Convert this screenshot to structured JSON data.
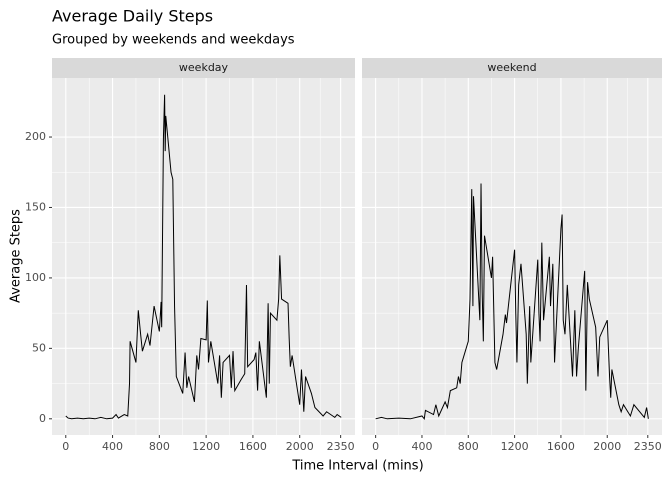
{
  "chart_data": {
    "type": "line",
    "title": "Average Daily Steps",
    "subtitle": "Grouped by weekends and weekdays",
    "x_label": "Time Interval (mins)",
    "y_label": "Average Steps",
    "color": "#000000",
    "grid": true,
    "xlim": [
      -117.75,
      2472.75
    ],
    "ylim": [
      -11.5,
      241.9
    ],
    "xticks": [
      0,
      400,
      800,
      1200,
      1600,
      2000,
      2350
    ],
    "yticks": [
      0,
      50,
      100,
      150,
      200
    ],
    "facets": [
      {
        "name": "weekday",
        "x": [
          0,
          20,
          50,
          100,
          150,
          200,
          250,
          300,
          350,
          400,
          430,
          450,
          500,
          530,
          545,
          550,
          600,
          620,
          640,
          655,
          700,
          720,
          740,
          755,
          800,
          815,
          820,
          835,
          845,
          850,
          855,
          900,
          915,
          930,
          945,
          1000,
          1020,
          1035,
          1050,
          1100,
          1120,
          1135,
          1155,
          1200,
          1210,
          1220,
          1240,
          1300,
          1315,
          1330,
          1345,
          1400,
          1415,
          1430,
          1445,
          1500,
          1530,
          1545,
          1555,
          1610,
          1625,
          1640,
          1655,
          1715,
          1730,
          1740,
          1750,
          1805,
          1820,
          1830,
          1845,
          1900,
          1910,
          1920,
          1935,
          2000,
          2015,
          2025,
          2035,
          2050,
          2100,
          2130,
          2200,
          2230,
          2300,
          2320,
          2355
        ],
        "values": [
          2,
          0.5,
          0,
          0.5,
          0,
          0.5,
          0,
          1,
          0,
          0.5,
          3,
          0.5,
          3,
          2,
          25,
          55,
          40,
          77,
          60,
          48,
          60,
          52,
          68,
          80,
          62,
          83,
          65,
          200,
          230,
          190,
          215,
          175,
          170,
          80,
          30,
          18,
          47,
          22,
          30,
          12,
          45,
          35,
          57,
          56,
          84,
          40,
          55,
          25,
          45,
          15,
          40,
          45,
          22,
          48,
          20,
          28,
          32,
          95,
          37,
          42,
          47,
          20,
          55,
          15,
          82,
          25,
          75,
          70,
          85,
          116,
          85,
          82,
          57,
          37,
          45,
          10,
          35,
          20,
          5,
          30,
          18,
          8,
          2,
          5,
          1,
          3,
          1
        ]
      },
      {
        "name": "weekend",
        "x": [
          0,
          50,
          100,
          200,
          300,
          400,
          420,
          430,
          500,
          520,
          545,
          600,
          620,
          645,
          700,
          715,
          730,
          745,
          800,
          815,
          830,
          840,
          845,
          900,
          910,
          920,
          930,
          940,
          1000,
          1010,
          1030,
          1045,
          1100,
          1120,
          1130,
          1200,
          1210,
          1220,
          1235,
          1255,
          1300,
          1310,
          1330,
          1340,
          1400,
          1410,
          1420,
          1435,
          1450,
          1500,
          1510,
          1530,
          1545,
          1600,
          1610,
          1620,
          1635,
          1655,
          1700,
          1720,
          1735,
          1750,
          1805,
          1815,
          1830,
          1845,
          1900,
          1920,
          1935,
          2000,
          2020,
          2030,
          2040,
          2100,
          2120,
          2140,
          2200,
          2230,
          2300,
          2320,
          2340,
          2355
        ],
        "values": [
          0,
          1,
          0,
          0.5,
          0,
          2,
          0,
          6,
          3,
          10,
          2,
          12,
          8,
          20,
          22,
          30,
          25,
          40,
          55,
          85,
          163,
          80,
          158,
          70,
          167,
          90,
          55,
          130,
          100,
          115,
          40,
          35,
          60,
          74,
          68,
          120,
          75,
          40,
          95,
          110,
          60,
          25,
          80,
          40,
          113,
          75,
          55,
          125,
          70,
          115,
          80,
          110,
          40,
          135,
          145,
          70,
          60,
          95,
          30,
          77,
          30,
          50,
          105,
          20,
          97,
          85,
          65,
          30,
          58,
          70,
          30,
          15,
          35,
          10,
          5,
          10,
          2,
          10,
          3,
          1,
          8,
          0
        ]
      }
    ]
  }
}
